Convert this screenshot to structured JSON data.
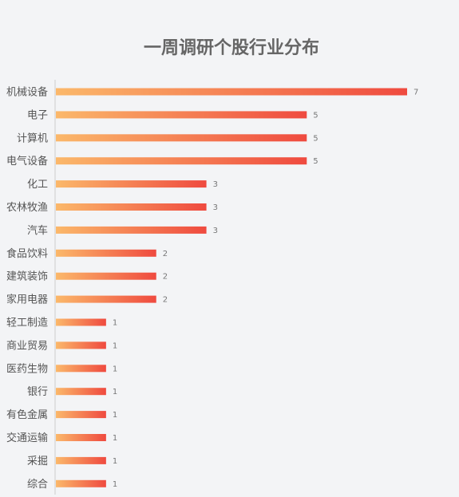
{
  "chart_data": {
    "type": "bar",
    "orientation": "horizontal",
    "title": "一周调研个股行业分布",
    "categories": [
      "机械设备",
      "电子",
      "计算机",
      "电气设备",
      "化工",
      "农林牧渔",
      "汽车",
      "食品饮料",
      "建筑装饰",
      "家用电器",
      "轻工制造",
      "商业贸易",
      "医药生物",
      "银行",
      "有色金属",
      "交通运输",
      "采掘",
      "综合"
    ],
    "values": [
      7,
      5,
      5,
      5,
      3,
      3,
      3,
      2,
      2,
      2,
      1,
      1,
      1,
      1,
      1,
      1,
      1,
      1
    ],
    "xlim": [
      0,
      7
    ],
    "grid": false,
    "legend": "none",
    "colors": {
      "gradient_start": "#fbb86a",
      "gradient_end": "#ef4a3f",
      "axis": "#cccccc"
    }
  }
}
